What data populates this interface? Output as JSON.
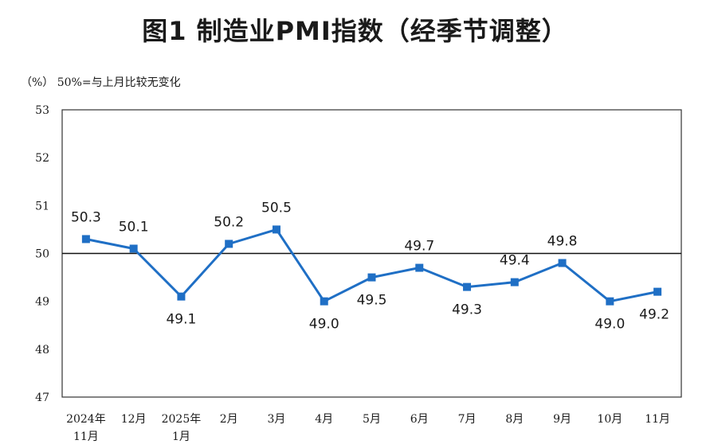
{
  "chart_data": {
    "type": "line",
    "title": "图1  制造业PMI指数（经季节调整）",
    "unit_note": "（%）  50%=与上月比较无变化",
    "categories": [
      [
        "2024年",
        "11月"
      ],
      [
        "12月"
      ],
      [
        "2025年",
        "1月"
      ],
      [
        "2月"
      ],
      [
        "3月"
      ],
      [
        "4月"
      ],
      [
        "5月"
      ],
      [
        "6月"
      ],
      [
        "7月"
      ],
      [
        "8月"
      ],
      [
        "9月"
      ],
      [
        "10月"
      ],
      [
        "11月"
      ]
    ],
    "values": [
      50.3,
      50.1,
      49.1,
      50.2,
      50.5,
      49.0,
      49.5,
      49.7,
      49.3,
      49.4,
      49.8,
      49.0,
      49.2
    ],
    "data_labels": [
      "50.3",
      "50.1",
      "49.1",
      "50.2",
      "50.5",
      "49.0",
      "49.5",
      "49.7",
      "49.3",
      "49.4",
      "49.8",
      "49.0",
      "49.2"
    ],
    "ylim": [
      47,
      53
    ],
    "yticks": [
      47,
      48,
      49,
      50,
      51,
      52,
      53
    ],
    "reference_line": 50,
    "line_color": "#1f6fc5",
    "grid": false,
    "legend": "none"
  }
}
